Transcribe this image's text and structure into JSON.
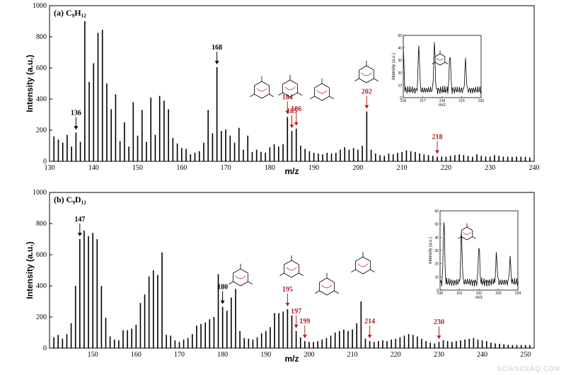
{
  "watermark": "SCIENCEAQ.COM",
  "chart_data": [
    {
      "type": "bar",
      "panel_label": "(a) C₉H₁₂",
      "xlabel": "m/z",
      "ylabel": "Intensity (a.u.)",
      "xlim": [
        130,
        240
      ],
      "ylim": [
        0,
        1000
      ],
      "xticks": [
        "130",
        "140",
        "150",
        "160",
        "170",
        "180",
        "190",
        "200",
        "210",
        "220",
        "230",
        "240"
      ],
      "yticks": [
        "0",
        "200",
        "400",
        "600",
        "800",
        "1000"
      ],
      "x": [
        131,
        132,
        133,
        134,
        135,
        136,
        137,
        138,
        139,
        140,
        141,
        142,
        143,
        144,
        145,
        146,
        147,
        148,
        149,
        150,
        151,
        152,
        153,
        154,
        155,
        156,
        157,
        158,
        159,
        160,
        161,
        162,
        163,
        164,
        165,
        166,
        167,
        168,
        169,
        170,
        171,
        172,
        173,
        174,
        175,
        176,
        177,
        178,
        179,
        180,
        181,
        182,
        183,
        184,
        185,
        186,
        187,
        188,
        189,
        190,
        191,
        192,
        193,
        194,
        195,
        196,
        197,
        198,
        199,
        200,
        201,
        202,
        203,
        204,
        205,
        206,
        207,
        208,
        209,
        210,
        211,
        212,
        213,
        214,
        215,
        216,
        217,
        218,
        219,
        220,
        221,
        222,
        223,
        224,
        225,
        226,
        227,
        228,
        229,
        230,
        231,
        232,
        233,
        234,
        235,
        236,
        237,
        238,
        239
      ],
      "values": [
        160,
        140,
        120,
        170,
        95,
        185,
        125,
        900,
        510,
        630,
        825,
        845,
        500,
        335,
        430,
        130,
        250,
        95,
        380,
        165,
        330,
        125,
        410,
        170,
        420,
        390,
        335,
        150,
        115,
        85,
        80,
        45,
        55,
        65,
        120,
        330,
        180,
        605,
        195,
        205,
        165,
        120,
        215,
        75,
        165,
        60,
        75,
        60,
        55,
        90,
        110,
        95,
        110,
        285,
        195,
        210,
        100,
        80,
        65,
        55,
        50,
        45,
        55,
        50,
        55,
        75,
        90,
        75,
        85,
        75,
        100,
        320,
        75,
        50,
        40,
        35,
        50,
        45,
        55,
        60,
        70,
        65,
        60,
        50,
        45,
        40,
        35,
        30,
        30,
        30,
        35,
        40,
        45,
        40,
        35,
        30,
        45,
        35,
        30,
        30,
        40,
        35,
        30,
        30,
        28,
        30,
        30,
        28,
        25
      ],
      "annotations": [
        {
          "label": "136",
          "x": 136,
          "color": "#000000"
        },
        {
          "label": "168",
          "x": 168,
          "color": "#000000"
        },
        {
          "label": "184",
          "x": 184,
          "color": "#b22222"
        },
        {
          "label": "185",
          "x": 185,
          "color": "#b22222"
        },
        {
          "label": "186",
          "x": 186,
          "color": "#b22222"
        },
        {
          "label": "202",
          "x": 202,
          "color": "#b22222"
        },
        {
          "label": "218",
          "x": 218,
          "color": "#b22222"
        }
      ],
      "inset": {
        "xlabel": "m/z",
        "ylabel": "Intensity (a.u.)",
        "xlim": [
          216,
          220
        ],
        "ylim": [
          0,
          50
        ],
        "xticks": [
          "216",
          "217",
          "218",
          "219",
          "220"
        ],
        "yticks": [
          "0",
          "10",
          "20",
          "30",
          "40",
          "50"
        ],
        "peaks": [
          216.0,
          216.8,
          217.6,
          218.4,
          219.2
        ],
        "heights": [
          32,
          36,
          38,
          30,
          24
        ]
      }
    },
    {
      "type": "bar",
      "panel_label": "(b) C₉D₁₂",
      "xlabel": "m/z",
      "ylabel": "Intensity (a.u.)",
      "xlim": [
        140,
        252
      ],
      "ylim": [
        0,
        1000
      ],
      "xticks": [
        "150",
        "160",
        "170",
        "180",
        "190",
        "200",
        "210",
        "220",
        "230",
        "240",
        "250"
      ],
      "yticks": [
        "0",
        "200",
        "400",
        "600",
        "800",
        "1000"
      ],
      "x": [
        141,
        142,
        143,
        144,
        145,
        146,
        147,
        148,
        149,
        150,
        151,
        152,
        153,
        154,
        155,
        156,
        157,
        158,
        159,
        160,
        161,
        162,
        163,
        164,
        165,
        166,
        167,
        168,
        169,
        170,
        171,
        172,
        173,
        174,
        175,
        176,
        177,
        178,
        179,
        180,
        181,
        182,
        183,
        184,
        185,
        186,
        187,
        188,
        189,
        190,
        191,
        192,
        193,
        194,
        195,
        196,
        197,
        198,
        199,
        200,
        201,
        202,
        203,
        204,
        205,
        206,
        207,
        208,
        209,
        210,
        211,
        212,
        213,
        214,
        215,
        216,
        217,
        218,
        219,
        220,
        221,
        222,
        223,
        224,
        225,
        226,
        227,
        228,
        229,
        230,
        231,
        232,
        233,
        234,
        235,
        236,
        237,
        238,
        239,
        240,
        241,
        242,
        243,
        244,
        245,
        246,
        247,
        248,
        249,
        250,
        251
      ],
      "values": [
        70,
        85,
        60,
        90,
        160,
        400,
        700,
        755,
        720,
        740,
        700,
        400,
        195,
        75,
        55,
        50,
        115,
        115,
        125,
        150,
        290,
        345,
        460,
        500,
        470,
        615,
        85,
        80,
        50,
        40,
        55,
        65,
        90,
        145,
        155,
        165,
        185,
        200,
        475,
        265,
        240,
        325,
        380,
        110,
        65,
        60,
        55,
        70,
        95,
        110,
        135,
        225,
        225,
        235,
        250,
        210,
        110,
        70,
        45,
        40,
        40,
        45,
        55,
        65,
        80,
        100,
        110,
        120,
        110,
        120,
        160,
        300,
        60,
        45,
        40,
        45,
        50,
        45,
        55,
        60,
        70,
        80,
        90,
        85,
        75,
        60,
        45,
        35,
        30,
        40,
        50,
        45,
        40,
        45,
        50,
        55,
        60,
        65,
        55,
        50,
        45,
        35,
        30,
        28,
        25,
        22,
        20,
        20,
        20,
        20,
        20
      ],
      "annotations": [
        {
          "label": "147",
          "x": 147,
          "color": "#000000"
        },
        {
          "label": "180",
          "x": 180,
          "color": "#000000"
        },
        {
          "label": "195",
          "x": 195,
          "color": "#b22222"
        },
        {
          "label": "197",
          "x": 197,
          "color": "#b22222"
        },
        {
          "label": "199",
          "x": 199,
          "color": "#b22222"
        },
        {
          "label": "214",
          "x": 214,
          "color": "#b22222"
        },
        {
          "label": "230",
          "x": 230,
          "color": "#b22222"
        }
      ],
      "inset": {
        "xlabel": "m/z",
        "ylabel": "Intensity (a.u.)",
        "xlim": [
          230,
          234
        ],
        "ylim": [
          0,
          60
        ],
        "xticks": [
          "230",
          "231",
          "232",
          "233",
          "234"
        ],
        "yticks": [
          "0",
          "10",
          "20",
          "30",
          "40",
          "50",
          "60"
        ],
        "peaks": [
          230.2,
          231.1,
          232.0,
          232.9,
          233.6
        ],
        "heights": [
          48,
          38,
          28,
          22,
          18
        ]
      }
    }
  ]
}
